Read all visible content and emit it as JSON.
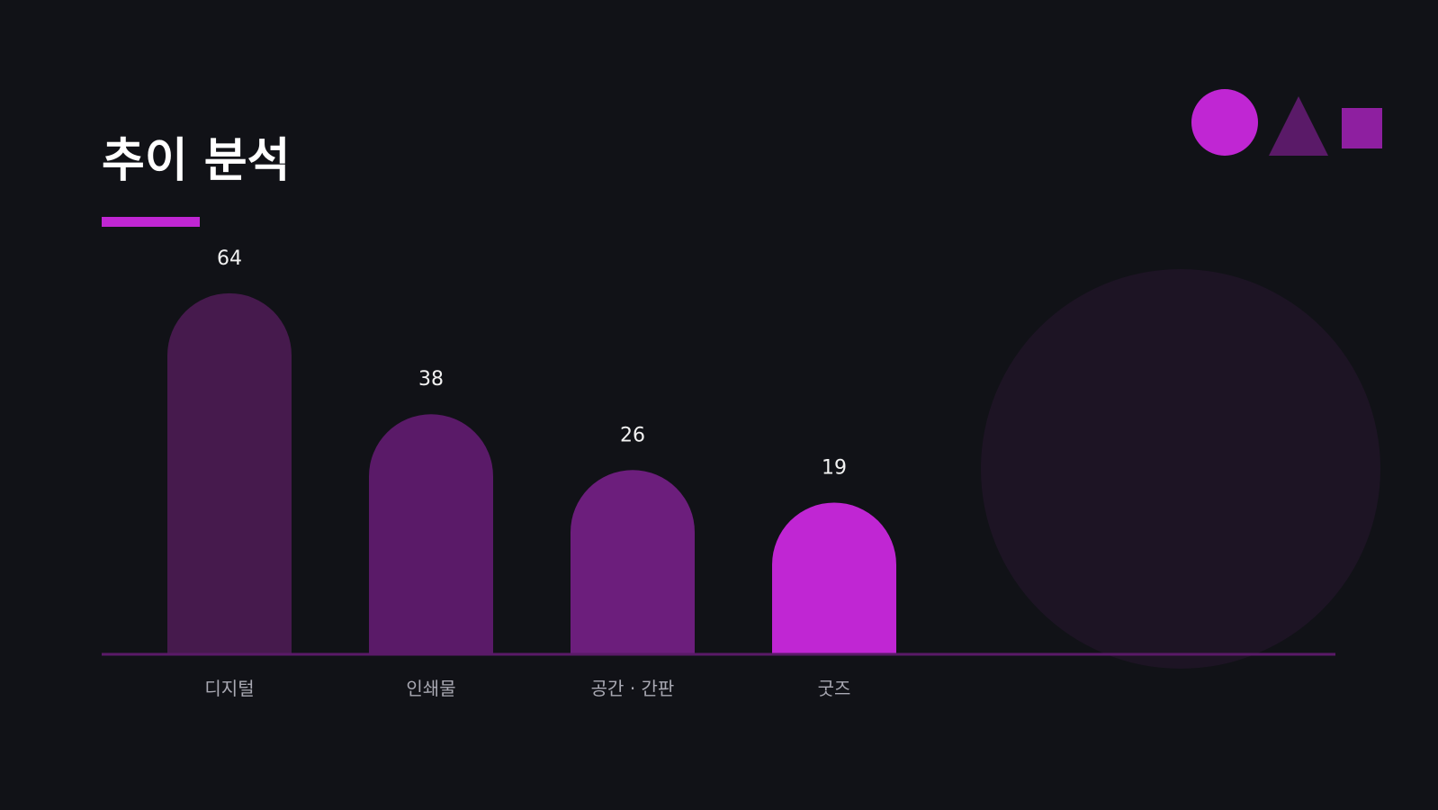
{
  "chart_data": {
    "type": "bar",
    "title": "추이 분석",
    "categories": [
      "디지털",
      "인쇄물",
      "공간 · 간판",
      "굿즈"
    ],
    "values": [
      64,
      38,
      26,
      19
    ],
    "colors": [
      "#461a4d",
      "#5a1a68",
      "#6c1e7c",
      "#c026d3"
    ]
  }
}
